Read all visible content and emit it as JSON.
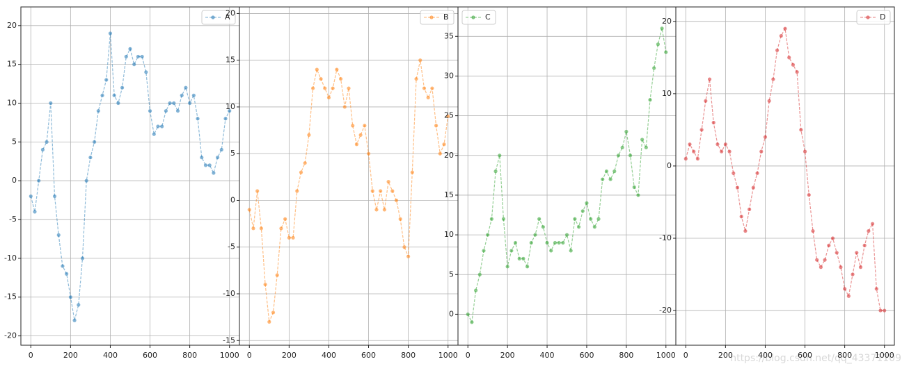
{
  "chart_data": [
    {
      "type": "line",
      "legend": "upper right",
      "grid": true,
      "linestyle": "dashed",
      "marker": "o",
      "x": [
        0,
        20,
        40,
        60,
        80,
        100,
        120,
        140,
        160,
        180,
        200,
        220,
        240,
        260,
        280,
        300,
        320,
        340,
        360,
        380,
        400,
        420,
        440,
        460,
        480,
        500,
        520,
        540,
        560,
        580,
        600,
        620,
        640,
        660,
        680,
        700,
        720,
        740,
        760,
        780,
        800,
        820,
        840,
        860,
        880,
        900,
        920,
        940,
        960,
        980,
        1000
      ],
      "series": [
        {
          "name": "A",
          "color": "#1f77b4",
          "values": [
            -2,
            -4,
            0,
            4,
            5,
            10,
            -2,
            -7,
            -11,
            -12,
            -15,
            -18,
            -16,
            -10,
            0,
            3,
            5,
            9,
            11,
            13,
            19,
            11,
            10,
            12,
            16,
            17,
            15,
            16,
            16,
            14,
            9,
            6,
            7,
            7,
            9,
            10,
            10,
            9,
            11,
            12,
            10,
            11,
            8,
            3,
            2,
            2,
            1,
            3,
            4,
            8,
            9
          ]
        }
      ],
      "xlim": [
        -50,
        1050
      ],
      "ylim": [
        -21.2,
        22.4
      ],
      "xticks": [
        0,
        200,
        400,
        600,
        800,
        1000
      ],
      "yticks": [
        -20,
        -15,
        -10,
        -5,
        0,
        5,
        10,
        15,
        20
      ]
    },
    {
      "type": "line",
      "legend": "upper right",
      "grid": true,
      "linestyle": "dashed",
      "marker": "o",
      "x": [
        0,
        20,
        40,
        60,
        80,
        100,
        120,
        140,
        160,
        180,
        200,
        220,
        240,
        260,
        280,
        300,
        320,
        340,
        360,
        380,
        400,
        420,
        440,
        460,
        480,
        500,
        520,
        540,
        560,
        580,
        600,
        620,
        640,
        660,
        680,
        700,
        720,
        740,
        760,
        780,
        800,
        820,
        840,
        860,
        880,
        900,
        920,
        940,
        960,
        980,
        1000
      ],
      "series": [
        {
          "name": "B",
          "color": "#ff7f0e",
          "values": [
            -1,
            -3,
            1,
            -3,
            -9,
            -13,
            -12,
            -8,
            -3,
            -2,
            -4,
            -4,
            1,
            3,
            4,
            7,
            12,
            14,
            13,
            12,
            11,
            12,
            14,
            13,
            10,
            12,
            8,
            6,
            7,
            8,
            5,
            1,
            -1,
            1,
            -1,
            2,
            1,
            0,
            -2,
            -5,
            -6,
            3,
            13,
            15,
            12,
            11,
            12,
            8,
            5,
            6,
            9
          ]
        }
      ],
      "xlim": [
        -50,
        1050
      ],
      "ylim": [
        -15.5,
        20.7
      ],
      "xticks": [
        0,
        200,
        400,
        600,
        800,
        1000
      ],
      "yticks": [
        -15,
        -10,
        -5,
        0,
        5,
        10,
        15,
        20
      ]
    },
    {
      "type": "line",
      "legend": "upper left",
      "grid": true,
      "linestyle": "dashed",
      "marker": "o",
      "x": [
        0,
        20,
        40,
        60,
        80,
        100,
        120,
        140,
        160,
        180,
        200,
        220,
        240,
        260,
        280,
        300,
        320,
        340,
        360,
        380,
        400,
        420,
        440,
        460,
        480,
        500,
        520,
        540,
        560,
        580,
        600,
        620,
        640,
        660,
        680,
        700,
        720,
        740,
        760,
        780,
        800,
        820,
        840,
        860,
        880,
        900,
        920,
        940,
        960,
        980,
        1000
      ],
      "series": [
        {
          "name": "C",
          "color": "#2ca02c",
          "values": [
            0,
            -1,
            3,
            5,
            8,
            10,
            12,
            18,
            20,
            12,
            6,
            8,
            9,
            7,
            7,
            6,
            9,
            10,
            12,
            11,
            9,
            8,
            9,
            9,
            9,
            10,
            8,
            12,
            11,
            13,
            14,
            12,
            11,
            12,
            17,
            18,
            17,
            18,
            20,
            21,
            23,
            20,
            16,
            15,
            22,
            21,
            27,
            31,
            34,
            36,
            33
          ]
        }
      ],
      "xlim": [
        -50,
        1050
      ],
      "ylim": [
        -3.9,
        38.7
      ],
      "xticks": [
        0,
        200,
        400,
        600,
        800,
        1000
      ],
      "yticks": [
        0,
        5,
        10,
        15,
        20,
        25,
        30,
        35
      ]
    },
    {
      "type": "line",
      "legend": "upper right",
      "grid": true,
      "linestyle": "dashed",
      "marker": "o",
      "x": [
        0,
        20,
        40,
        60,
        80,
        100,
        120,
        140,
        160,
        180,
        200,
        220,
        240,
        260,
        280,
        300,
        320,
        340,
        360,
        380,
        400,
        420,
        440,
        460,
        480,
        500,
        520,
        540,
        560,
        580,
        600,
        620,
        640,
        660,
        680,
        700,
        720,
        740,
        760,
        780,
        800,
        820,
        840,
        860,
        880,
        900,
        920,
        940,
        960,
        980,
        1000
      ],
      "series": [
        {
          "name": "D",
          "color": "#d62728",
          "values": [
            1,
            3,
            2,
            1,
            5,
            9,
            12,
            6,
            3,
            2,
            3,
            2,
            -1,
            -3,
            -7,
            -9,
            -6,
            -3,
            -1,
            2,
            4,
            9,
            12,
            16,
            18,
            19,
            15,
            14,
            13,
            5,
            2,
            -4,
            -9,
            -13,
            -14,
            -13,
            -11,
            -10,
            -12,
            -14,
            -17,
            -18,
            -15,
            -12,
            -14,
            -11,
            -9,
            -8,
            -17,
            -20,
            -20
          ]
        }
      ],
      "xlim": [
        -50,
        1050
      ],
      "ylim": [
        -24.8,
        22.0
      ],
      "xticks": [
        0,
        200,
        400,
        600,
        800,
        1000
      ],
      "yticks": [
        -20,
        -10,
        0,
        10,
        20
      ]
    }
  ],
  "watermark": "https://blog.csdn.net/qq_43371109"
}
